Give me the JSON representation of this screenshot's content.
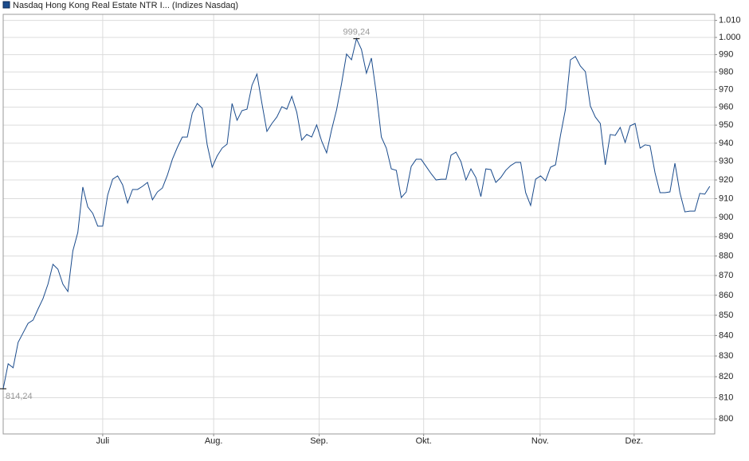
{
  "chart_data": {
    "type": "line",
    "yscale": "log",
    "grid": true,
    "max_label": "999,24",
    "min_label": "814,24",
    "xlim": [
      0,
      143
    ],
    "xticks": [
      {
        "value": 20,
        "label": "Juli"
      },
      {
        "value": 42.3,
        "label": "Aug."
      },
      {
        "value": 63.5,
        "label": "Sep."
      },
      {
        "value": 84.5,
        "label": "Okt."
      },
      {
        "value": 107.9,
        "label": "Nov."
      },
      {
        "value": 126.8,
        "label": "Dez."
      }
    ],
    "ylim": [
      793,
      1013.6
    ],
    "yticks": [
      800,
      810,
      820,
      830,
      840,
      850,
      860,
      870,
      880,
      890,
      900,
      910,
      920,
      930,
      940,
      950,
      960,
      970,
      980,
      990,
      {
        "value": 1000,
        "label": "1.000"
      },
      {
        "value": 1010,
        "label": "1.010"
      }
    ],
    "series": [
      {
        "name": "Nasdaq Hong Kong Real Estate NTR I... (Indizes Nasdaq)",
        "color": "#1a4b8c",
        "values": [
          814.24,
          826.2,
          824.3,
          836.6,
          841.3,
          846.0,
          847.6,
          853.1,
          858.3,
          865.6,
          875.7,
          873.2,
          865.6,
          861.9,
          882.6,
          892.2,
          916.2,
          905.6,
          902.2,
          895.5,
          895.5,
          911.9,
          920.4,
          922.2,
          917.4,
          907.7,
          914.9,
          914.9,
          916.6,
          918.7,
          909.4,
          913.6,
          915.7,
          922.6,
          931.2,
          937.7,
          943.4,
          943.4,
          956.7,
          962.1,
          959.4,
          939.1,
          926.9,
          933.0,
          937.3,
          939.5,
          962.1,
          952.7,
          958.1,
          958.9,
          972.4,
          978.8,
          962.1,
          946.5,
          950.9,
          954.5,
          960.3,
          958.9,
          966.1,
          957.2,
          941.7,
          944.8,
          943.4,
          950.1,
          941.2,
          934.7,
          947.4,
          958.5,
          973.3,
          990.3,
          987.0,
          999.24,
          993.0,
          979.3,
          988.0,
          967.5,
          943.4,
          937.3,
          926.0,
          925.2,
          910.6,
          913.6,
          927.3,
          931.2,
          931.2,
          927.3,
          923.4,
          920.0,
          920.4,
          920.4,
          933.4,
          935.1,
          929.9,
          920.0,
          926.0,
          921.3,
          911.1,
          926.0,
          925.6,
          918.7,
          921.3,
          925.2,
          927.8,
          929.5,
          929.5,
          913.2,
          906.4,
          920.4,
          922.2,
          919.6,
          926.9,
          928.2,
          944.3,
          958.9,
          987.0,
          988.9,
          983.4,
          980.2,
          960.7,
          954.5,
          950.9,
          928.2,
          944.8,
          944.3,
          948.7,
          940.4,
          949.6,
          950.9,
          937.3,
          939.1,
          938.6,
          923.9,
          913.2,
          913.2,
          913.6,
          929.1,
          913.2,
          903.0,
          903.4,
          903.4,
          912.8,
          912.4,
          916.6
        ]
      }
    ]
  }
}
